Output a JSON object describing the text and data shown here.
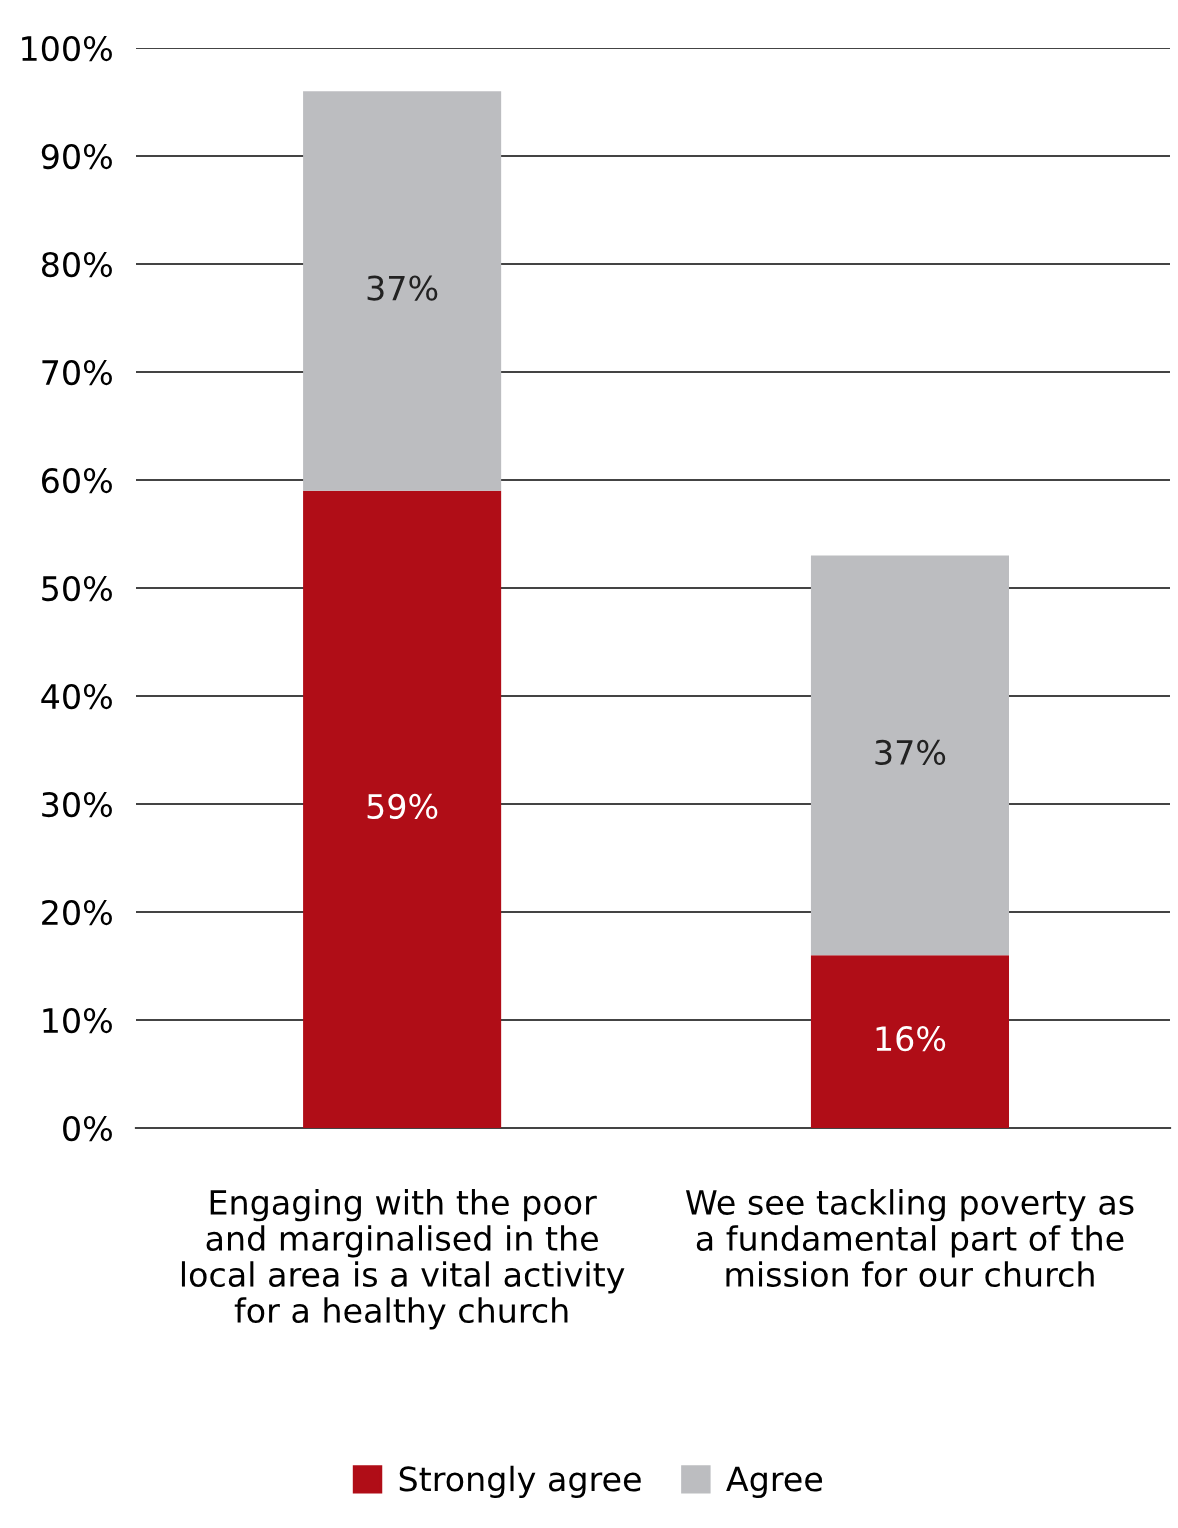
{
  "chart_data": {
    "type": "bar",
    "stacked": true,
    "categories": [
      "Engaging with the poor\nand marginalised in the\nlocal area is a vital activity\nfor a healthy church",
      "We see tackling poverty as\na fundamental part of the\nmission for our church"
    ],
    "series": [
      {
        "name": "Strongly agree",
        "color": "#b00d17",
        "values": [
          59,
          16
        ],
        "value_labels": [
          "59%",
          "16%"
        ]
      },
      {
        "name": "Agree",
        "color": "#bcbdc0",
        "values": [
          37,
          37
        ],
        "value_labels": [
          "37%",
          "37%"
        ]
      }
    ],
    "ylim": [
      0,
      100
    ],
    "yticks": [
      {
        "value": 0,
        "label": "0%"
      },
      {
        "value": 10,
        "label": "10%"
      },
      {
        "value": 20,
        "label": "20%"
      },
      {
        "value": 30,
        "label": "30%"
      },
      {
        "value": 40,
        "label": "40%"
      },
      {
        "value": 50,
        "label": "50%"
      },
      {
        "value": 60,
        "label": "60%"
      },
      {
        "value": 70,
        "label": "70%"
      },
      {
        "value": 80,
        "label": "80%"
      },
      {
        "value": 90,
        "label": "90%"
      },
      {
        "value": 100,
        "label": "100%"
      }
    ],
    "grid": "y",
    "legend": "bottom"
  }
}
